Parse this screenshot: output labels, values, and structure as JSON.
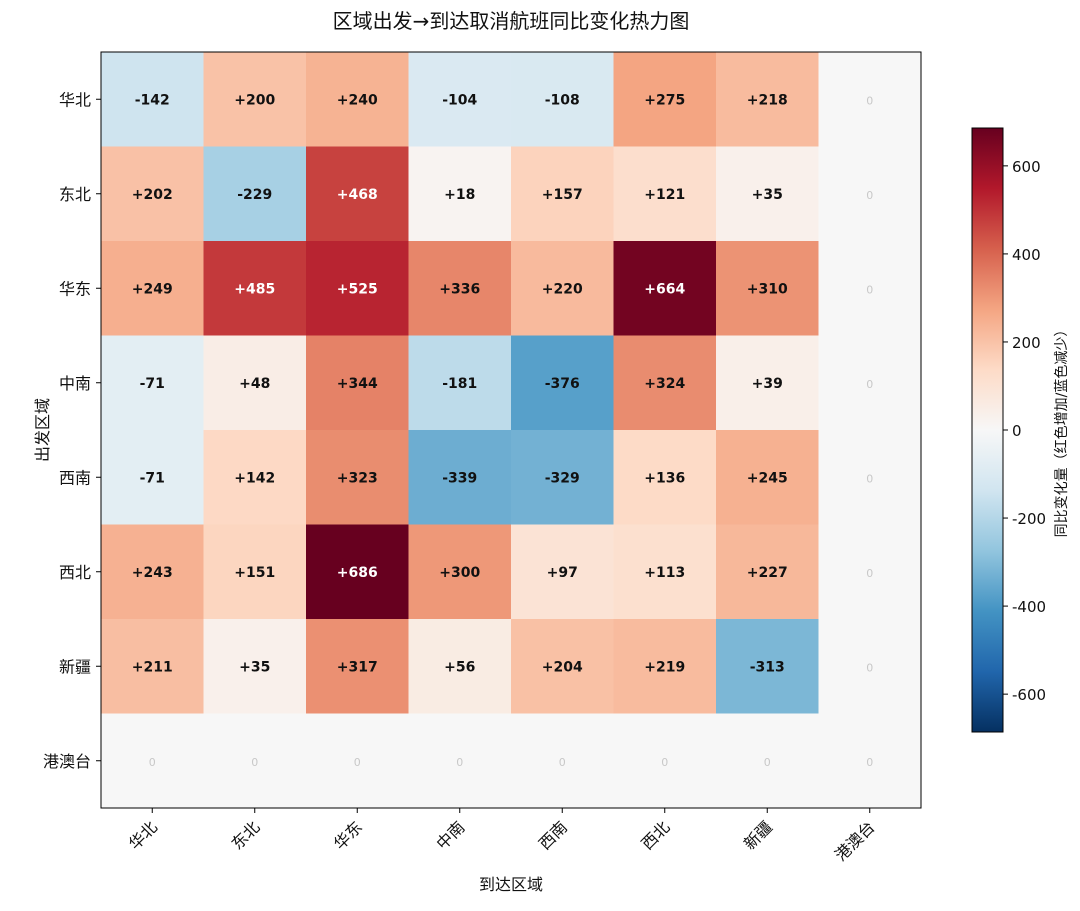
{
  "chart_data": {
    "type": "heatmap",
    "title": "区域出发→到达取消航班同比变化热力图",
    "xlabel": "到达区域",
    "ylabel": "出发区域",
    "x_categories": [
      "华北",
      "东北",
      "华东",
      "中南",
      "西南",
      "西北",
      "新疆",
      "港澳台"
    ],
    "y_categories": [
      "华北",
      "东北",
      "华东",
      "中南",
      "西南",
      "西北",
      "新疆",
      "港澳台"
    ],
    "values": [
      [
        -142,
        200,
        240,
        -104,
        -108,
        275,
        218,
        0
      ],
      [
        202,
        -229,
        468,
        18,
        157,
        121,
        35,
        0
      ],
      [
        249,
        485,
        525,
        336,
        220,
        664,
        310,
        0
      ],
      [
        -71,
        48,
        344,
        -181,
        -376,
        324,
        39,
        0
      ],
      [
        -71,
        142,
        323,
        -339,
        -329,
        136,
        245,
        0
      ],
      [
        243,
        151,
        686,
        300,
        97,
        113,
        227,
        0
      ],
      [
        211,
        35,
        317,
        56,
        204,
        219,
        -313,
        0
      ],
      [
        0,
        0,
        0,
        0,
        0,
        0,
        0,
        0
      ]
    ],
    "cell_labels": [
      [
        "-142",
        "+200",
        "+240",
        "-104",
        "-108",
        "+275",
        "+218",
        "0"
      ],
      [
        "+202",
        "-229",
        "+468",
        "+18",
        "+157",
        "+121",
        "+35",
        "0"
      ],
      [
        "+249",
        "+485",
        "+525",
        "+336",
        "+220",
        "+664",
        "+310",
        "0"
      ],
      [
        "-71",
        "+48",
        "+344",
        "-181",
        "-376",
        "+324",
        "+39",
        "0"
      ],
      [
        "-71",
        "+142",
        "+323",
        "-339",
        "-329",
        "+136",
        "+245",
        "0"
      ],
      [
        "+243",
        "+151",
        "+686",
        "+300",
        "+97",
        "+113",
        "+227",
        "0"
      ],
      [
        "+211",
        "+35",
        "+317",
        "+56",
        "+204",
        "+219",
        "-313",
        "0"
      ],
      [
        "0",
        "0",
        "0",
        "0",
        "0",
        "0",
        "0",
        "0"
      ]
    ],
    "colorbar": {
      "label": "同比变化量（红色增加/蓝色减少）",
      "colormap": "RdBu_r",
      "range": [
        -686,
        686
      ],
      "ticks": [
        -600,
        -400,
        -200,
        0,
        200,
        400,
        600
      ],
      "tick_labels": [
        "-600",
        "-400",
        "-200",
        "0",
        "200",
        "400",
        "600"
      ]
    },
    "grid": false,
    "legend": "colorbar-right"
  }
}
